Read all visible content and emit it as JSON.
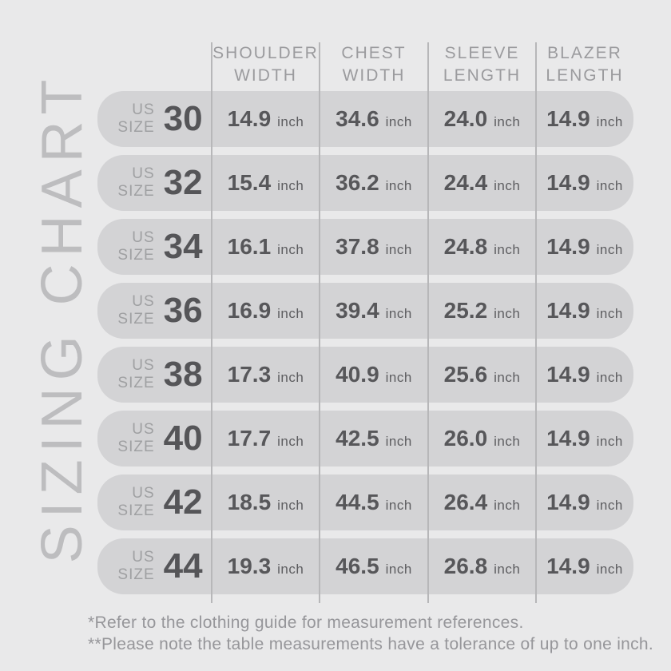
{
  "title": "SIZING CHART",
  "colors": {
    "background": "#e9e9ea",
    "row_bar": "#d3d3d5",
    "divider": "#b7b7b9",
    "dark_text": "#57575a",
    "muted_text": "#9b9b9e",
    "title_text": "#bdbdbf"
  },
  "table": {
    "size_label_line1": "US",
    "size_label_line2": "SIZE",
    "unit": "inch",
    "headers": [
      {
        "line1": "SHOULDER",
        "line2": "WIDTH"
      },
      {
        "line1": "CHEST",
        "line2": "WIDTH"
      },
      {
        "line1": "SLEEVE",
        "line2": "LENGTH"
      },
      {
        "line1": "BLAZER",
        "line2": "LENGTH"
      }
    ],
    "rows": [
      {
        "size": "30",
        "shoulder": "14.9",
        "chest": "34.6",
        "sleeve": "24.0",
        "blazer": "14.9"
      },
      {
        "size": "32",
        "shoulder": "15.4",
        "chest": "36.2",
        "sleeve": "24.4",
        "blazer": "14.9"
      },
      {
        "size": "34",
        "shoulder": "16.1",
        "chest": "37.8",
        "sleeve": "24.8",
        "blazer": "14.9"
      },
      {
        "size": "36",
        "shoulder": "16.9",
        "chest": "39.4",
        "sleeve": "25.2",
        "blazer": "14.9"
      },
      {
        "size": "38",
        "shoulder": "17.3",
        "chest": "40.9",
        "sleeve": "25.6",
        "blazer": "14.9"
      },
      {
        "size": "40",
        "shoulder": "17.7",
        "chest": "42.5",
        "sleeve": "26.0",
        "blazer": "14.9"
      },
      {
        "size": "42",
        "shoulder": "18.5",
        "chest": "44.5",
        "sleeve": "26.4",
        "blazer": "14.9"
      },
      {
        "size": "44",
        "shoulder": "19.3",
        "chest": "46.5",
        "sleeve": "26.8",
        "blazer": "14.9"
      }
    ]
  },
  "footnotes": [
    "*Refer to the clothing guide for measurement references.",
    "**Please note the table measurements have a tolerance of up to one inch."
  ],
  "chart_data": {
    "type": "table",
    "title": "SIZING CHART",
    "columns": [
      "US SIZE",
      "SHOULDER WIDTH (inch)",
      "CHEST WIDTH (inch)",
      "SLEEVE LENGTH (inch)",
      "BLAZER LENGTH (inch)"
    ],
    "rows": [
      [
        30,
        14.9,
        34.6,
        24.0,
        14.9
      ],
      [
        32,
        15.4,
        36.2,
        24.4,
        14.9
      ],
      [
        34,
        16.1,
        37.8,
        24.8,
        14.9
      ],
      [
        36,
        16.9,
        39.4,
        25.2,
        14.9
      ],
      [
        38,
        17.3,
        40.9,
        25.6,
        14.9
      ],
      [
        40,
        17.7,
        42.5,
        26.0,
        14.9
      ],
      [
        42,
        18.5,
        44.5,
        26.4,
        14.9
      ],
      [
        44,
        19.3,
        46.5,
        26.8,
        14.9
      ]
    ],
    "footnotes": [
      "*Refer to the clothing guide for measurement references.",
      "**Please note the table measurements have a tolerance of up to one inch."
    ],
    "layout": {
      "grid": "off",
      "row_style": "rounded-pill",
      "legend": "none"
    }
  }
}
